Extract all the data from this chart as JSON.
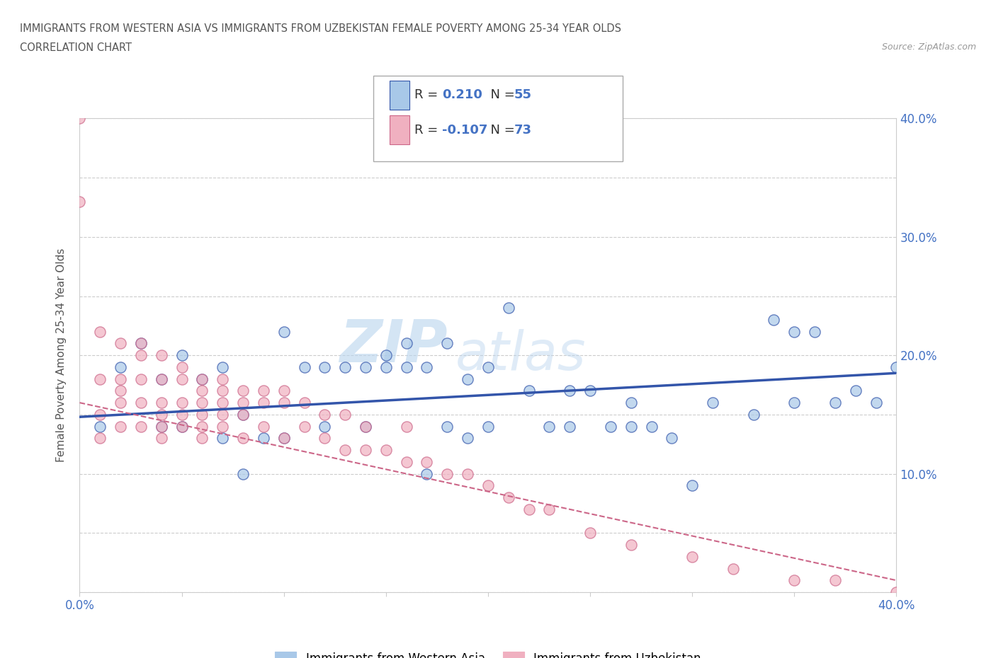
{
  "title_line1": "IMMIGRANTS FROM WESTERN ASIA VS IMMIGRANTS FROM UZBEKISTAN FEMALE POVERTY AMONG 25-34 YEAR OLDS",
  "title_line2": "CORRELATION CHART",
  "source_text": "Source: ZipAtlas.com",
  "ylabel": "Female Poverty Among 25-34 Year Olds",
  "xlim": [
    0.0,
    0.4
  ],
  "ylim": [
    0.0,
    0.4
  ],
  "blue_color": "#a8c8e8",
  "pink_color": "#f0b0c0",
  "blue_line_color": "#3355aa",
  "pink_line_color": "#cc6688",
  "watermark_color": "#ddeeff",
  "legend_R_blue": "0.210",
  "legend_N_blue": "55",
  "legend_R_pink": "-0.107",
  "legend_N_pink": "73",
  "blue_scatter_x": [
    0.01,
    0.02,
    0.03,
    0.04,
    0.04,
    0.05,
    0.05,
    0.06,
    0.07,
    0.07,
    0.08,
    0.08,
    0.09,
    0.1,
    0.1,
    0.11,
    0.12,
    0.12,
    0.13,
    0.14,
    0.14,
    0.15,
    0.15,
    0.16,
    0.16,
    0.17,
    0.17,
    0.18,
    0.18,
    0.19,
    0.19,
    0.2,
    0.2,
    0.21,
    0.22,
    0.23,
    0.24,
    0.24,
    0.25,
    0.26,
    0.27,
    0.27,
    0.28,
    0.29,
    0.3,
    0.31,
    0.33,
    0.34,
    0.35,
    0.35,
    0.36,
    0.37,
    0.38,
    0.39,
    0.4
  ],
  "blue_scatter_y": [
    0.14,
    0.19,
    0.21,
    0.18,
    0.14,
    0.2,
    0.14,
    0.18,
    0.19,
    0.13,
    0.15,
    0.1,
    0.13,
    0.22,
    0.13,
    0.19,
    0.19,
    0.14,
    0.19,
    0.19,
    0.14,
    0.2,
    0.19,
    0.21,
    0.19,
    0.19,
    0.1,
    0.21,
    0.14,
    0.18,
    0.13,
    0.19,
    0.14,
    0.24,
    0.17,
    0.14,
    0.17,
    0.14,
    0.17,
    0.14,
    0.16,
    0.14,
    0.14,
    0.13,
    0.09,
    0.16,
    0.15,
    0.23,
    0.22,
    0.16,
    0.22,
    0.16,
    0.17,
    0.16,
    0.19
  ],
  "pink_scatter_x": [
    0.0,
    0.0,
    0.01,
    0.01,
    0.01,
    0.01,
    0.02,
    0.02,
    0.02,
    0.02,
    0.02,
    0.03,
    0.03,
    0.03,
    0.03,
    0.03,
    0.04,
    0.04,
    0.04,
    0.04,
    0.04,
    0.04,
    0.05,
    0.05,
    0.05,
    0.05,
    0.05,
    0.06,
    0.06,
    0.06,
    0.06,
    0.06,
    0.06,
    0.07,
    0.07,
    0.07,
    0.07,
    0.07,
    0.08,
    0.08,
    0.08,
    0.08,
    0.09,
    0.09,
    0.09,
    0.1,
    0.1,
    0.1,
    0.11,
    0.11,
    0.12,
    0.12,
    0.13,
    0.13,
    0.14,
    0.14,
    0.15,
    0.16,
    0.16,
    0.17,
    0.18,
    0.19,
    0.2,
    0.21,
    0.22,
    0.23,
    0.25,
    0.27,
    0.3,
    0.32,
    0.35,
    0.37,
    0.4
  ],
  "pink_scatter_y": [
    0.4,
    0.33,
    0.22,
    0.18,
    0.15,
    0.13,
    0.21,
    0.18,
    0.17,
    0.16,
    0.14,
    0.21,
    0.2,
    0.18,
    0.16,
    0.14,
    0.2,
    0.18,
    0.16,
    0.15,
    0.14,
    0.13,
    0.19,
    0.18,
    0.16,
    0.15,
    0.14,
    0.18,
    0.17,
    0.16,
    0.15,
    0.14,
    0.13,
    0.18,
    0.17,
    0.16,
    0.15,
    0.14,
    0.17,
    0.16,
    0.15,
    0.13,
    0.17,
    0.16,
    0.14,
    0.17,
    0.16,
    0.13,
    0.16,
    0.14,
    0.15,
    0.13,
    0.15,
    0.12,
    0.14,
    0.12,
    0.12,
    0.14,
    0.11,
    0.11,
    0.1,
    0.1,
    0.09,
    0.08,
    0.07,
    0.07,
    0.05,
    0.04,
    0.03,
    0.02,
    0.01,
    0.01,
    0.0
  ],
  "blue_trend_x": [
    0.0,
    0.4
  ],
  "blue_trend_y": [
    0.148,
    0.185
  ],
  "pink_trend_x": [
    0.0,
    0.4
  ],
  "pink_trend_y": [
    0.16,
    0.01
  ]
}
